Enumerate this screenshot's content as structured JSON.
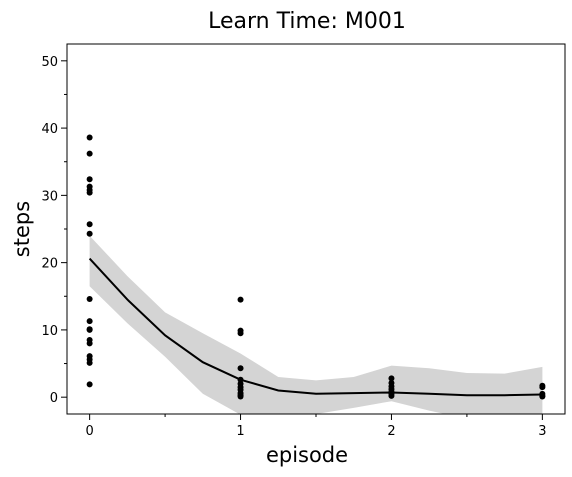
{
  "chart_data": {
    "type": "scatter",
    "title": "Learn Time: M001",
    "xlabel": "episode",
    "ylabel": "steps",
    "xlim": [
      -0.15,
      3.15
    ],
    "ylim": [
      -2.5,
      52.5
    ],
    "xticks": [
      0,
      1,
      2,
      3
    ],
    "xtick_labels": [
      "0",
      "1",
      "2",
      "3"
    ],
    "xminor": [
      0.5,
      1.5,
      2.5
    ],
    "yticks": [
      0,
      10,
      20,
      30,
      40,
      50
    ],
    "ytick_labels": [
      "0",
      "10",
      "20",
      "30",
      "40",
      "50"
    ],
    "yminor": [
      5,
      15,
      25,
      35,
      45
    ],
    "grid": false,
    "colors": {
      "points": "#000000",
      "fit_line": "#000000",
      "band": "#d4d4d4"
    },
    "points": [
      {
        "x": 0,
        "y": 38.6
      },
      {
        "x": 0,
        "y": 36.2
      },
      {
        "x": 0,
        "y": 32.4
      },
      {
        "x": 0,
        "y": 31.3
      },
      {
        "x": 0,
        "y": 30.8
      },
      {
        "x": 0,
        "y": 30.4
      },
      {
        "x": 0,
        "y": 25.7
      },
      {
        "x": 0,
        "y": 24.3
      },
      {
        "x": 0,
        "y": 14.6
      },
      {
        "x": 0,
        "y": 11.3
      },
      {
        "x": 0,
        "y": 10.1
      },
      {
        "x": 0,
        "y": 10.0
      },
      {
        "x": 0,
        "y": 8.5
      },
      {
        "x": 0,
        "y": 8.0
      },
      {
        "x": 0,
        "y": 6.1
      },
      {
        "x": 0,
        "y": 5.6
      },
      {
        "x": 0,
        "y": 5.1
      },
      {
        "x": 0,
        "y": 1.9
      },
      {
        "x": 1,
        "y": 14.5
      },
      {
        "x": 1,
        "y": 9.9
      },
      {
        "x": 1,
        "y": 9.5
      },
      {
        "x": 1,
        "y": 4.3
      },
      {
        "x": 1,
        "y": 2.6
      },
      {
        "x": 1,
        "y": 2.0
      },
      {
        "x": 1,
        "y": 1.5
      },
      {
        "x": 1,
        "y": 1.1
      },
      {
        "x": 1,
        "y": 0.6
      },
      {
        "x": 1,
        "y": 0.3
      },
      {
        "x": 1,
        "y": 0.1
      },
      {
        "x": 2,
        "y": 2.8
      },
      {
        "x": 2,
        "y": 2.1
      },
      {
        "x": 2,
        "y": 1.6
      },
      {
        "x": 2,
        "y": 1.2
      },
      {
        "x": 2,
        "y": 0.8
      },
      {
        "x": 2,
        "y": 0.5
      },
      {
        "x": 2,
        "y": 0.2
      },
      {
        "x": 3,
        "y": 1.7
      },
      {
        "x": 3,
        "y": 1.5
      },
      {
        "x": 3,
        "y": 0.5
      },
      {
        "x": 3,
        "y": 0.2
      },
      {
        "x": 3,
        "y": 0.1
      }
    ],
    "fit": {
      "x": [
        0,
        0.25,
        0.5,
        0.75,
        1,
        1.25,
        1.5,
        1.75,
        2,
        2.25,
        2.5,
        2.75,
        3
      ],
      "y": [
        20.6,
        14.5,
        9.2,
        5.2,
        2.6,
        1.0,
        0.5,
        0.6,
        0.7,
        0.5,
        0.3,
        0.3,
        0.4
      ],
      "lower": [
        16.5,
        11.0,
        6.0,
        0.5,
        -2.6,
        -3.0,
        -2.5,
        -1.6,
        -0.6,
        -2.0,
        -3.2,
        -3.6,
        -3.8
      ],
      "upper": [
        24.0,
        18.0,
        12.6,
        9.5,
        6.5,
        3.0,
        2.5,
        3.0,
        4.7,
        4.3,
        3.6,
        3.5,
        4.5
      ]
    }
  }
}
